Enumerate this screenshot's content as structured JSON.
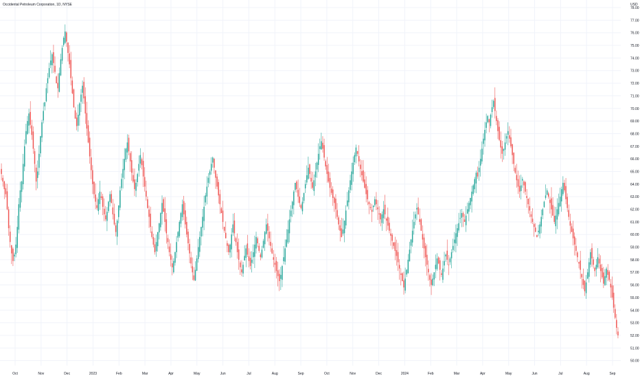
{
  "chart_data": {
    "type": "candlestick",
    "title": "Occidental Petroleum Corporation, 1D, NYSE",
    "currency": "USD",
    "y_ticks": [
      50,
      51,
      52,
      53,
      54,
      55,
      56,
      57,
      58,
      59,
      60,
      61,
      62,
      63,
      64,
      65,
      66,
      67,
      68,
      69,
      70,
      71,
      72,
      73,
      74,
      75,
      76,
      77,
      78
    ],
    "ylim": [
      49.6,
      78.6
    ],
    "x_ticks": [
      "Oct",
      "Nov",
      "Dec",
      "2023",
      "Feb",
      "Mar",
      "Apr",
      "May",
      "Jun",
      "Jul",
      "Aug",
      "Sep",
      "Oct",
      "Nov",
      "Dec",
      "2024",
      "Feb",
      "Mar",
      "Apr",
      "May",
      "Jun",
      "Jul",
      "Aug",
      "Sep"
    ],
    "grid": true,
    "up_color": "#26a69a",
    "down_color": "#ef5350",
    "closes": [
      64.8,
      64.2,
      63.6,
      63.2,
      62.0,
      60.5,
      59.4,
      58.5,
      57.9,
      58.4,
      59.2,
      60.6,
      62.4,
      63.5,
      64.2,
      65.6,
      67.0,
      68.2,
      69.0,
      69.6,
      68.7,
      67.9,
      66.8,
      65.6,
      64.2,
      65.0,
      66.4,
      67.8,
      68.9,
      69.8,
      70.5,
      71.6,
      72.4,
      73.2,
      73.8,
      74.3,
      73.6,
      72.9,
      72.0,
      71.6,
      72.8,
      73.9,
      74.8,
      75.6,
      76.1,
      75.3,
      74.4,
      73.5,
      72.4,
      71.2,
      70.1,
      69.2,
      68.6,
      69.5,
      70.4,
      71.1,
      71.8,
      70.8,
      69.6,
      68.4,
      67.3,
      66.2,
      65.1,
      64.0,
      63.2,
      62.6,
      62.1,
      62.8,
      63.4,
      62.9,
      62.2,
      61.6,
      61.2,
      61.8,
      62.6,
      63.2,
      62.5,
      61.6,
      60.8,
      60.2,
      61.1,
      62.3,
      63.5,
      64.4,
      65.2,
      66.0,
      66.8,
      67.3,
      66.6,
      65.8,
      64.9,
      64.2,
      63.6,
      64.1,
      64.8,
      65.6,
      66.3,
      65.5,
      64.6,
      63.8,
      63.0,
      62.1,
      61.4,
      60.6,
      59.8,
      59.2,
      58.6,
      59.4,
      60.2,
      60.9,
      61.7,
      62.5,
      61.8,
      61.0,
      60.1,
      59.4,
      58.6,
      58.0,
      57.4,
      57.9,
      58.6,
      59.4,
      60.2,
      61.0,
      61.7,
      62.4,
      61.6,
      60.8,
      60.0,
      59.3,
      58.5,
      57.7,
      57.0,
      56.4,
      57.2,
      58.1,
      59.0,
      59.8,
      60.6,
      61.4,
      62.2,
      63.1,
      63.8,
      64.5,
      65.0,
      65.6,
      66.1,
      65.3,
      64.5,
      63.8,
      63.1,
      62.4,
      61.7,
      61.0,
      60.3,
      59.7,
      59.1,
      58.6,
      59.2,
      60.0,
      60.8,
      60.1,
      59.4,
      58.6,
      58.0,
      57.4,
      57.0,
      57.6,
      58.3,
      58.9,
      58.4,
      57.9,
      57.5,
      58.0,
      58.6,
      59.2,
      59.8,
      59.3,
      58.7,
      58.2,
      58.8,
      59.5,
      60.2,
      60.8,
      60.3,
      59.7,
      59.1,
      58.5,
      58.0,
      57.6,
      57.1,
      56.7,
      56.3,
      56.8,
      57.5,
      58.2,
      58.9,
      59.6,
      60.4,
      61.2,
      61.9,
      62.6,
      63.4,
      64.1,
      63.6,
      63.0,
      62.5,
      62.1,
      62.6,
      63.3,
      64.0,
      64.7,
      65.3,
      64.8,
      64.2,
      63.7,
      64.3,
      65.0,
      65.7,
      66.4,
      67.0,
      67.4,
      66.8,
      66.1,
      65.4,
      64.8,
      64.2,
      63.7,
      63.3,
      62.9,
      62.5,
      62.0,
      61.4,
      60.8,
      60.3,
      59.8,
      60.4,
      61.1,
      61.9,
      62.7,
      63.5,
      64.3,
      65.0,
      65.7,
      66.3,
      66.9,
      66.4,
      65.8,
      65.2,
      64.7,
      64.2,
      63.7,
      63.2,
      62.8,
      62.4,
      62.1,
      61.8,
      62.3,
      62.8,
      62.4,
      62.0,
      61.6,
      61.2,
      61.6,
      62.0,
      61.6,
      61.1,
      60.7,
      60.3,
      59.9,
      59.5,
      59.1,
      58.7,
      58.3,
      57.8,
      57.3,
      56.8,
      56.3,
      55.8,
      56.5,
      57.2,
      58.0,
      58.8,
      59.6,
      60.3,
      61.0,
      61.6,
      62.1,
      61.6,
      61.0,
      60.3,
      59.6,
      58.9,
      58.2,
      57.6,
      57.0,
      56.4,
      56.0,
      56.5,
      57.0,
      57.6,
      58.1,
      57.7,
      57.2,
      56.8,
      57.3,
      57.9,
      58.4,
      58.0,
      57.6,
      58.1,
      58.6,
      59.1,
      59.6,
      60.1,
      60.5,
      60.9,
      61.3,
      61.7,
      61.4,
      61.0,
      61.5,
      62.0,
      62.5,
      62.9,
      63.4,
      63.9,
      64.4,
      64.9,
      64.6,
      65.3,
      66.0,
      66.8,
      67.6,
      68.3,
      68.9,
      69.4,
      68.9,
      69.5,
      70.1,
      70.6,
      69.8,
      69.0,
      68.2,
      67.5,
      66.9,
      66.4,
      66.8,
      67.3,
      67.8,
      68.2,
      67.6,
      67.0,
      66.3,
      65.6,
      64.9,
      64.3,
      63.8,
      63.4,
      63.9,
      64.4,
      63.9,
      63.4,
      62.9,
      62.4,
      61.9,
      61.4,
      61.0,
      60.6,
      60.2,
      59.8,
      60.3,
      60.8,
      61.4,
      62.0,
      62.6,
      63.1,
      63.5,
      63.0,
      62.5,
      62.0,
      61.5,
      61.0,
      61.5,
      62.0,
      62.5,
      63.0,
      63.6,
      64.1,
      63.5,
      62.8,
      62.1,
      61.4,
      60.7,
      60.2,
      59.7,
      59.2,
      58.7,
      58.2,
      57.7,
      57.2,
      56.6,
      56.0,
      55.5,
      56.2,
      57.0,
      57.8,
      58.6,
      58.1,
      57.6,
      57.1,
      57.6,
      58.2,
      57.7,
      57.1,
      56.6,
      56.1,
      56.7,
      57.3,
      56.8,
      56.4,
      55.8,
      55.0,
      54.2,
      53.4,
      52.6,
      52.0
    ]
  }
}
